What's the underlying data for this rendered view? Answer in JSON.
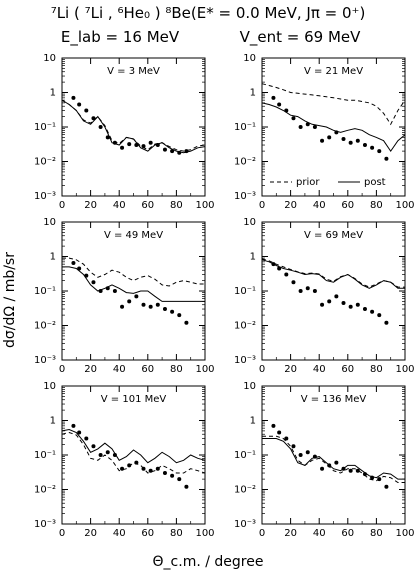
{
  "header": {
    "line1": "⁷Li ( ⁷Li , ⁶He₀ ) ⁸Be(E* = 0.0 MeV, Jπ = 0⁺)",
    "elab": "E_lab = 16 MeV",
    "vent": "V_ent = 69 MeV"
  },
  "axes": {
    "ylabel": "dσ/dΩ  /  mb/sr",
    "xlabel": "Θ_c.m. / degree"
  },
  "legend": {
    "prior": "prior",
    "post": "post"
  },
  "chart_data": [
    {
      "type": "line",
      "panel_label": "V = 3 MeV",
      "xlim": [
        0,
        100
      ],
      "ylim": [
        0.001,
        10
      ],
      "yscale": "log",
      "xticks": [
        0,
        20,
        40,
        60,
        80,
        100
      ],
      "yticks": [
        "10⁻³",
        "10⁻²",
        "10⁻¹",
        "1",
        "10"
      ],
      "points": {
        "x": [
          8,
          12,
          17,
          22,
          27,
          32,
          37,
          42,
          47,
          52,
          57,
          62,
          67,
          72,
          77,
          82,
          87
        ],
        "y": [
          0.7,
          0.45,
          0.3,
          0.18,
          0.1,
          0.05,
          0.035,
          0.025,
          0.032,
          0.03,
          0.028,
          0.035,
          0.03,
          0.022,
          0.02,
          0.018,
          0.02
        ]
      },
      "series": [
        {
          "name": "post",
          "x": [
            0,
            5,
            10,
            15,
            20,
            25,
            30,
            35,
            40,
            45,
            50,
            55,
            60,
            65,
            70,
            75,
            80,
            85,
            90,
            95,
            100
          ],
          "y": [
            0.6,
            0.45,
            0.3,
            0.15,
            0.12,
            0.2,
            0.1,
            0.035,
            0.03,
            0.05,
            0.045,
            0.025,
            0.02,
            0.03,
            0.035,
            0.025,
            0.02,
            0.018,
            0.02,
            0.025,
            0.027
          ]
        },
        {
          "name": "prior",
          "x": [
            0,
            5,
            10,
            15,
            20,
            25,
            30,
            35,
            40,
            45,
            50,
            55,
            60,
            65,
            70,
            75,
            80,
            85,
            90,
            95,
            100
          ],
          "y": [
            0.6,
            0.45,
            0.3,
            0.16,
            0.13,
            0.2,
            0.11,
            0.04,
            0.033,
            0.05,
            0.045,
            0.028,
            0.022,
            0.032,
            0.035,
            0.027,
            0.022,
            0.02,
            0.022,
            0.028,
            0.03
          ]
        }
      ]
    },
    {
      "type": "line",
      "panel_label": "V = 21 MeV",
      "xlim": [
        0,
        100
      ],
      "ylim": [
        0.001,
        10
      ],
      "yscale": "log",
      "xticks": [
        0,
        20,
        40,
        60,
        80,
        100
      ],
      "yticks": [
        "10⁻³",
        "10⁻²",
        "10⁻¹",
        "1",
        "10"
      ],
      "points": {
        "x": [
          8,
          12,
          17,
          22,
          27,
          32,
          37,
          42,
          47,
          52,
          57,
          62,
          67,
          72,
          77,
          82,
          87
        ],
        "y": [
          0.7,
          0.45,
          0.3,
          0.18,
          0.1,
          0.12,
          0.1,
          0.04,
          0.05,
          0.07,
          0.045,
          0.035,
          0.04,
          0.03,
          0.025,
          0.02,
          0.012
        ]
      },
      "series": [
        {
          "name": "post",
          "x": [
            0,
            5,
            10,
            15,
            20,
            25,
            30,
            35,
            40,
            45,
            50,
            55,
            60,
            65,
            70,
            75,
            80,
            85,
            90,
            95,
            100
          ],
          "y": [
            0.5,
            0.45,
            0.38,
            0.3,
            0.22,
            0.2,
            0.15,
            0.12,
            0.11,
            0.1,
            0.08,
            0.07,
            0.08,
            0.09,
            0.08,
            0.06,
            0.05,
            0.04,
            0.02,
            0.04,
            0.06
          ]
        },
        {
          "name": "prior",
          "x": [
            0,
            5,
            10,
            15,
            20,
            25,
            30,
            35,
            40,
            45,
            50,
            55,
            60,
            65,
            70,
            75,
            80,
            85,
            90,
            95,
            100
          ],
          "y": [
            1.8,
            1.6,
            1.4,
            1.2,
            1.0,
            0.95,
            0.9,
            0.85,
            0.8,
            0.75,
            0.7,
            0.65,
            0.6,
            0.6,
            0.55,
            0.5,
            0.4,
            0.25,
            0.12,
            0.3,
            0.6
          ]
        }
      ]
    },
    {
      "type": "line",
      "panel_label": "V = 49 MeV",
      "xlim": [
        0,
        100
      ],
      "ylim": [
        0.001,
        10
      ],
      "yscale": "log",
      "xticks": [
        0,
        20,
        40,
        60,
        80,
        100
      ],
      "yticks": [
        "10⁻³",
        "10⁻²",
        "10⁻¹",
        "1",
        "10"
      ],
      "points": {
        "x": [
          8,
          12,
          17,
          22,
          27,
          32,
          37,
          42,
          47,
          52,
          57,
          62,
          67,
          72,
          77,
          82,
          87
        ],
        "y": [
          0.65,
          0.45,
          0.28,
          0.18,
          0.1,
          0.12,
          0.1,
          0.035,
          0.05,
          0.07,
          0.04,
          0.035,
          0.04,
          0.03,
          0.025,
          0.02,
          0.012
        ]
      },
      "series": [
        {
          "name": "post",
          "x": [
            0,
            5,
            10,
            15,
            20,
            25,
            30,
            35,
            40,
            45,
            50,
            55,
            60,
            65,
            70,
            75,
            80,
            85,
            90,
            95,
            100
          ],
          "y": [
            0.5,
            0.5,
            0.45,
            0.3,
            0.15,
            0.1,
            0.12,
            0.15,
            0.12,
            0.09,
            0.085,
            0.1,
            0.1,
            0.07,
            0.05,
            0.05,
            0.05,
            0.05,
            0.05,
            0.05,
            0.05
          ]
        },
        {
          "name": "prior",
          "x": [
            0,
            5,
            10,
            15,
            20,
            25,
            30,
            35,
            40,
            45,
            50,
            55,
            60,
            65,
            70,
            75,
            80,
            85,
            90,
            95,
            100
          ],
          "y": [
            0.9,
            0.9,
            0.8,
            0.6,
            0.35,
            0.25,
            0.3,
            0.4,
            0.35,
            0.25,
            0.2,
            0.25,
            0.28,
            0.22,
            0.15,
            0.14,
            0.18,
            0.2,
            0.18,
            0.16,
            0.16
          ]
        }
      ]
    },
    {
      "type": "line",
      "panel_label": "V = 69 MeV",
      "xlim": [
        0,
        100
      ],
      "ylim": [
        0.001,
        10
      ],
      "yscale": "log",
      "xticks": [
        0,
        20,
        40,
        60,
        80,
        100
      ],
      "yticks": [
        "10⁻³",
        "10⁻²",
        "10⁻¹",
        "1",
        "10"
      ],
      "points": {
        "x": [
          8,
          12,
          17,
          22,
          27,
          32,
          37,
          42,
          47,
          52,
          57,
          62,
          67,
          72,
          77,
          82,
          87
        ],
        "y": [
          0.6,
          0.45,
          0.3,
          0.18,
          0.1,
          0.12,
          0.1,
          0.04,
          0.05,
          0.07,
          0.045,
          0.035,
          0.04,
          0.03,
          0.025,
          0.02,
          0.012
        ]
      },
      "series": [
        {
          "name": "post",
          "x": [
            0,
            5,
            10,
            15,
            20,
            25,
            30,
            35,
            40,
            45,
            50,
            55,
            60,
            65,
            70,
            75,
            80,
            85,
            90,
            95,
            100
          ],
          "y": [
            0.8,
            0.7,
            0.55,
            0.45,
            0.4,
            0.35,
            0.3,
            0.32,
            0.3,
            0.2,
            0.18,
            0.25,
            0.3,
            0.22,
            0.15,
            0.12,
            0.15,
            0.2,
            0.18,
            0.12,
            0.12
          ]
        },
        {
          "name": "prior",
          "x": [
            0,
            5,
            10,
            15,
            20,
            25,
            30,
            35,
            40,
            45,
            50,
            55,
            60,
            65,
            70,
            75,
            80,
            85,
            90,
            95,
            100
          ],
          "y": [
            0.85,
            0.75,
            0.6,
            0.5,
            0.42,
            0.36,
            0.32,
            0.33,
            0.31,
            0.22,
            0.19,
            0.26,
            0.3,
            0.23,
            0.16,
            0.13,
            0.16,
            0.2,
            0.18,
            0.13,
            0.13
          ]
        }
      ]
    },
    {
      "type": "line",
      "panel_label": "V = 101 MeV",
      "xlim": [
        0,
        100
      ],
      "ylim": [
        0.001,
        10
      ],
      "yscale": "log",
      "xticks": [
        0,
        20,
        40,
        60,
        80,
        100
      ],
      "yticks": [
        "10⁻³",
        "10⁻²",
        "10⁻¹",
        "1",
        "10"
      ],
      "points": {
        "x": [
          8,
          12,
          17,
          22,
          27,
          32,
          37,
          42,
          47,
          52,
          57,
          62,
          67,
          72,
          77,
          82,
          87
        ],
        "y": [
          0.7,
          0.45,
          0.3,
          0.18,
          0.1,
          0.12,
          0.1,
          0.04,
          0.05,
          0.06,
          0.04,
          0.035,
          0.04,
          0.03,
          0.025,
          0.02,
          0.012
        ]
      },
      "series": [
        {
          "name": "post",
          "x": [
            0,
            5,
            10,
            15,
            20,
            25,
            30,
            35,
            40,
            45,
            50,
            55,
            60,
            65,
            70,
            75,
            80,
            85,
            90,
            95,
            100
          ],
          "y": [
            0.5,
            0.55,
            0.45,
            0.25,
            0.12,
            0.15,
            0.22,
            0.15,
            0.07,
            0.09,
            0.14,
            0.1,
            0.06,
            0.08,
            0.12,
            0.09,
            0.06,
            0.07,
            0.1,
            0.08,
            0.07
          ]
        },
        {
          "name": "prior",
          "x": [
            0,
            5,
            10,
            15,
            20,
            25,
            30,
            35,
            40,
            45,
            50,
            55,
            60,
            65,
            70,
            75,
            80,
            85,
            90,
            95,
            100
          ],
          "y": [
            0.4,
            0.45,
            0.38,
            0.2,
            0.08,
            0.07,
            0.1,
            0.07,
            0.035,
            0.04,
            0.06,
            0.05,
            0.03,
            0.035,
            0.05,
            0.04,
            0.03,
            0.03,
            0.04,
            0.035,
            0.03
          ]
        }
      ]
    },
    {
      "type": "line",
      "panel_label": "V = 136 MeV",
      "xlim": [
        0,
        100
      ],
      "ylim": [
        0.001,
        10
      ],
      "yscale": "log",
      "xticks": [
        0,
        20,
        40,
        60,
        80,
        100
      ],
      "yticks": [
        "10⁻³",
        "10⁻²",
        "10⁻¹",
        "1",
        "10"
      ],
      "points": {
        "x": [
          8,
          12,
          17,
          22,
          27,
          32,
          37,
          42,
          47,
          52,
          57,
          62,
          67,
          72,
          77,
          82,
          87
        ],
        "y": [
          0.7,
          0.45,
          0.3,
          0.18,
          0.1,
          0.12,
          0.09,
          0.04,
          0.05,
          0.06,
          0.04,
          0.035,
          0.035,
          0.028,
          0.022,
          0.02,
          0.012
        ]
      },
      "series": [
        {
          "name": "post",
          "x": [
            0,
            5,
            10,
            15,
            20,
            25,
            30,
            35,
            40,
            45,
            50,
            55,
            60,
            65,
            70,
            75,
            80,
            85,
            90,
            95,
            100
          ],
          "y": [
            0.3,
            0.3,
            0.3,
            0.25,
            0.15,
            0.06,
            0.05,
            0.08,
            0.09,
            0.06,
            0.04,
            0.035,
            0.05,
            0.05,
            0.035,
            0.025,
            0.022,
            0.03,
            0.028,
            0.02,
            0.02
          ]
        },
        {
          "name": "prior",
          "x": [
            0,
            5,
            10,
            15,
            20,
            25,
            30,
            35,
            40,
            45,
            50,
            55,
            60,
            65,
            70,
            75,
            80,
            85,
            90,
            95,
            100
          ],
          "y": [
            0.35,
            0.35,
            0.35,
            0.3,
            0.18,
            0.07,
            0.05,
            0.07,
            0.08,
            0.055,
            0.035,
            0.03,
            0.04,
            0.04,
            0.03,
            0.02,
            0.018,
            0.024,
            0.022,
            0.016,
            0.016
          ]
        }
      ]
    }
  ]
}
